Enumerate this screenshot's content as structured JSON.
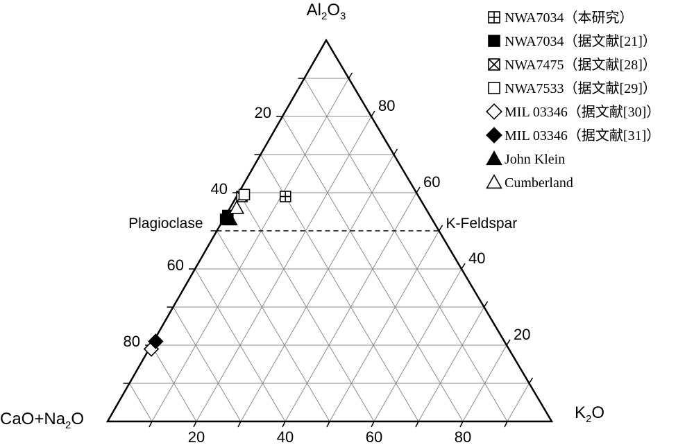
{
  "chart_data": {
    "type": "scatter",
    "subtype": "ternary",
    "apices": {
      "top": {
        "pre": "Al",
        "sub1": "2",
        "mid": "O",
        "sub2": "3"
      },
      "left": {
        "pre": "CaO+Na",
        "sub1": "2",
        "mid": "O"
      },
      "right": {
        "pre": "K",
        "sub1": "2",
        "mid": "O"
      }
    },
    "axes": {
      "bottom_ticks": [
        "20",
        "40",
        "60",
        "80"
      ],
      "left_ticks": [
        "20",
        "40",
        "60",
        "80"
      ],
      "right_ticks": [
        "20",
        "40",
        "60",
        "80"
      ],
      "grid_step": 10
    },
    "divider_al2o3": 50,
    "region_labels": {
      "left": "Plagioclase",
      "right": "K-Feldspar"
    },
    "series": [
      {
        "name": "NWA7034（本研究）",
        "marker": "square-plus",
        "points": [
          {
            "al": 59,
            "k": 11
          }
        ]
      },
      {
        "name": "NWA7034（据文献[21]）",
        "marker": "square-filled",
        "points": [
          {
            "al": 54,
            "k": 0.5
          },
          {
            "al": 53,
            "k": 0.5
          }
        ]
      },
      {
        "name": "NWA7475（据文献[28]）",
        "marker": "square-x",
        "points": [
          {
            "al": 59,
            "k": 1.2
          }
        ]
      },
      {
        "name": "NWA7533（据文献[29]）",
        "marker": "square-open",
        "points": [
          {
            "al": 59.5,
            "k": 1.5
          }
        ]
      },
      {
        "name": "MIL 03346（据文献[30]）",
        "marker": "diamond-open",
        "points": [
          {
            "al": 19,
            "k": 0.5
          }
        ]
      },
      {
        "name": "MIL 03346（据文献[31]）",
        "marker": "diamond-filled",
        "points": [
          {
            "al": 21,
            "k": 0.5
          }
        ]
      },
      {
        "name": "John Klein",
        "marker": "triangle-filled",
        "points": [
          {
            "al": 53,
            "k": 1.5
          }
        ]
      },
      {
        "name": "Cumberland",
        "marker": "triangle-open",
        "points": [
          {
            "al": 56,
            "k": 1.5
          }
        ]
      }
    ]
  }
}
